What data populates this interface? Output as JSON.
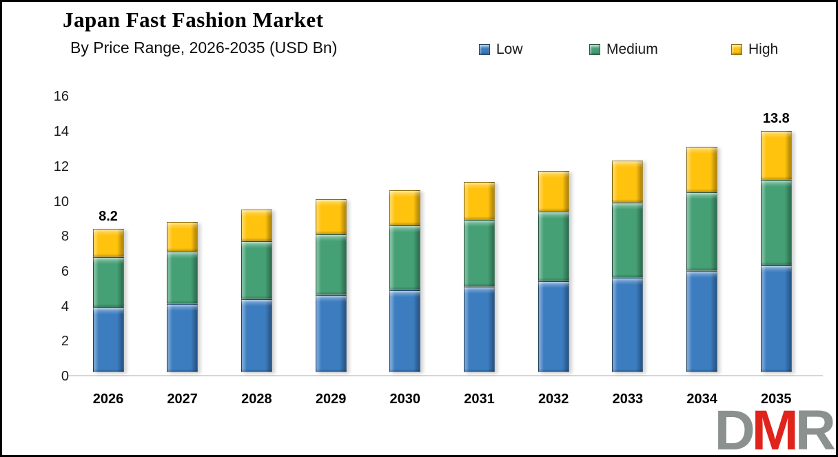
{
  "header": {
    "title": "Japan Fast Fashion Market",
    "subtitle": "By Price Range, 2026-2035 (USD Bn)"
  },
  "legend": {
    "items": [
      {
        "label": "Low",
        "color": "#3C7DC0"
      },
      {
        "label": "Medium",
        "color": "#45A075"
      },
      {
        "label": "High",
        "color": "#FFC30E"
      }
    ]
  },
  "chart_data": {
    "type": "bar",
    "stacked": true,
    "title": "Japan Fast Fashion Market",
    "subtitle": "By Price Range, 2026-2035 (USD Bn)",
    "unit": "USD Bn",
    "categories": [
      "2026",
      "2027",
      "2028",
      "2029",
      "2030",
      "2031",
      "2032",
      "2033",
      "2034",
      "2035"
    ],
    "series": [
      {
        "name": "Low",
        "color": "#3C7DC0",
        "values": [
          3.7,
          3.9,
          4.2,
          4.4,
          4.7,
          4.9,
          5.2,
          5.4,
          5.8,
          6.1
        ]
      },
      {
        "name": "Medium",
        "color": "#45A075",
        "values": [
          2.9,
          3.0,
          3.3,
          3.5,
          3.7,
          3.8,
          4.0,
          4.3,
          4.5,
          4.9
        ]
      },
      {
        "name": "High",
        "color": "#FFC30E",
        "values": [
          1.6,
          1.7,
          1.8,
          2.0,
          2.0,
          2.2,
          2.3,
          2.4,
          2.6,
          2.8
        ]
      }
    ],
    "totals": [
      8.2,
      8.6,
      9.3,
      9.9,
      10.4,
      10.9,
      11.5,
      12.1,
      12.9,
      13.8
    ],
    "bar_labels": [
      {
        "index": 0,
        "text": "8.2"
      },
      {
        "index": 9,
        "text": "13.8"
      }
    ],
    "ylim": [
      0,
      16
    ],
    "yticks": [
      "0",
      "2",
      "4",
      "6",
      "8",
      "10",
      "12",
      "14",
      "16"
    ],
    "grid": false,
    "legend_position": "top"
  },
  "logo": {
    "letters": [
      {
        "char": "D",
        "color": "#8B918E"
      },
      {
        "char": "M",
        "color": "#E0241B"
      },
      {
        "char": "R",
        "color": "#8B918E"
      }
    ]
  }
}
